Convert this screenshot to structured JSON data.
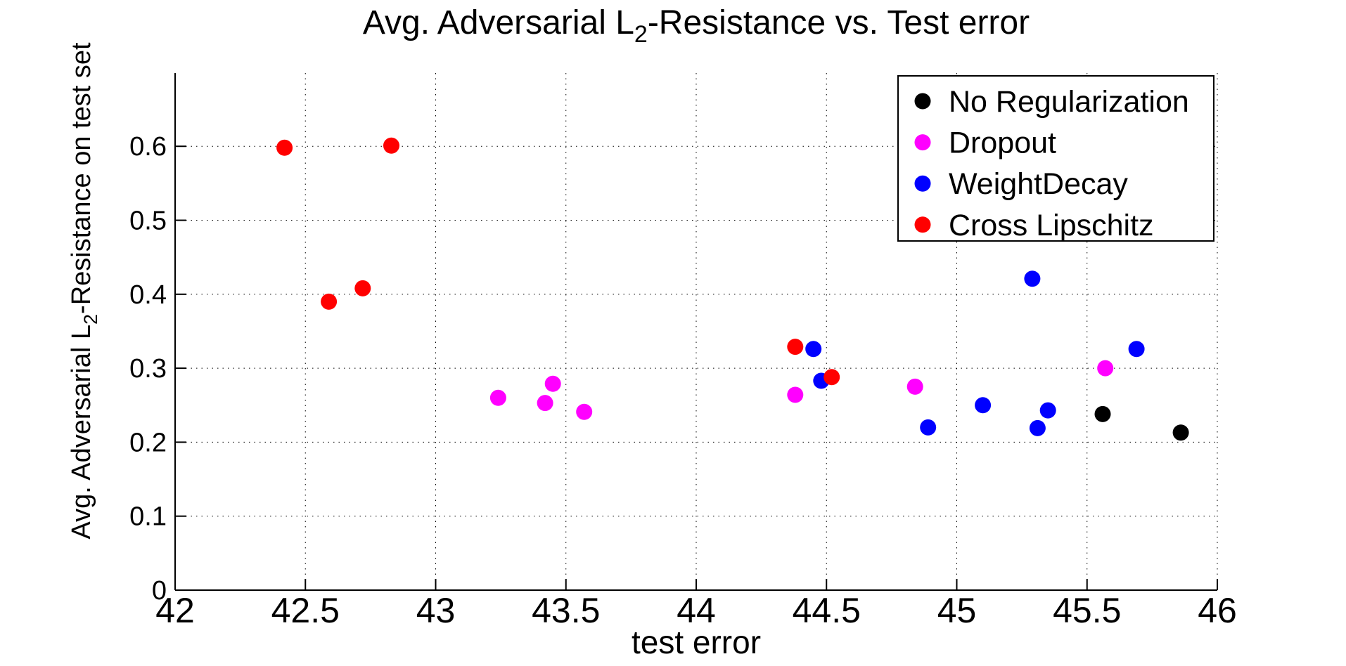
{
  "title": {
    "prefix": "Avg. Adversarial L",
    "sub": "2",
    "suffix": "-Resistance vs. Test error"
  },
  "chart_data": {
    "type": "scatter",
    "title": "Avg. Adversarial L2-Resistance vs. Test error",
    "xlabel": "test error",
    "ylabel_parts": {
      "prefix": "Avg. Adversarial L",
      "sub": "2",
      "suffix": "-Resistance on test set"
    },
    "xlim": [
      42,
      46
    ],
    "ylim": [
      0,
      0.699
    ],
    "x_ticks": [
      "42",
      "42.5",
      "43",
      "43.5",
      "44",
      "44.5",
      "45",
      "45.5",
      "46"
    ],
    "y_ticks": [
      "0",
      "0.1",
      "0.2",
      "0.3",
      "0.4",
      "0.5",
      "0.6"
    ],
    "grid": true,
    "grid_style": "dotted",
    "legend_position": "top-right",
    "marker": "filled-circle",
    "series": [
      {
        "name": "No Regularization",
        "color": "#000000",
        "points": [
          [
            45.56,
            0.238
          ],
          [
            45.86,
            0.213
          ]
        ]
      },
      {
        "name": "Dropout",
        "color": "#ff00ff",
        "points": [
          [
            43.24,
            0.26
          ],
          [
            43.42,
            0.253
          ],
          [
            43.45,
            0.279
          ],
          [
            43.57,
            0.241
          ],
          [
            44.38,
            0.264
          ],
          [
            44.84,
            0.275
          ],
          [
            45.57,
            0.3
          ]
        ]
      },
      {
        "name": "WeightDecay",
        "color": "#0000ff",
        "points": [
          [
            44.45,
            0.326
          ],
          [
            44.48,
            0.283
          ],
          [
            44.89,
            0.22
          ],
          [
            45.1,
            0.25
          ],
          [
            45.29,
            0.421
          ],
          [
            45.31,
            0.219
          ],
          [
            45.35,
            0.243
          ],
          [
            45.69,
            0.326
          ]
        ]
      },
      {
        "name": "Cross Lipschitz",
        "color": "#ff0000",
        "points": [
          [
            42.42,
            0.598
          ],
          [
            42.59,
            0.39
          ],
          [
            42.72,
            0.408
          ],
          [
            42.83,
            0.601
          ],
          [
            44.38,
            0.329
          ],
          [
            44.52,
            0.288
          ]
        ]
      }
    ]
  }
}
